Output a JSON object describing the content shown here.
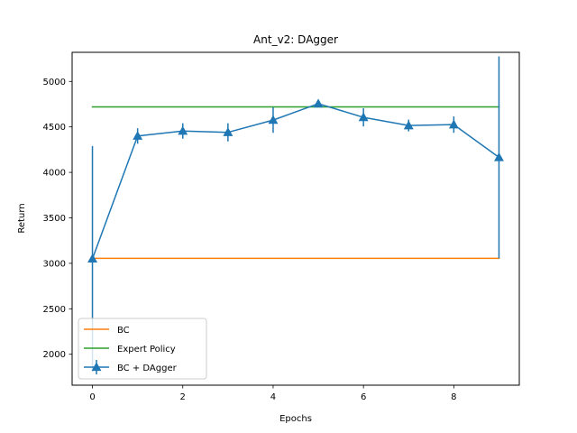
{
  "chart_data": {
    "type": "line",
    "title": "Ant_v2: DAgger",
    "xlabel": "Epochs",
    "ylabel": "Return",
    "xlim": [
      -0.45,
      9.45
    ],
    "ylim": [
      1660,
      5320
    ],
    "x_ticks": [
      0,
      2,
      4,
      6,
      8
    ],
    "y_ticks": [
      2000,
      2500,
      3000,
      3500,
      4000,
      4500,
      5000
    ],
    "grid": false,
    "legend_position": "lower-left",
    "x": [
      0,
      1,
      2,
      3,
      4,
      5,
      6,
      7,
      8,
      9
    ],
    "series": [
      {
        "name": "BC",
        "color": "#ff7f0e",
        "style": "line",
        "values": [
          3055,
          3055,
          3055,
          3055,
          3055,
          3055,
          3055,
          3055,
          3055,
          3055
        ]
      },
      {
        "name": "Expert Policy",
        "color": "#2ca02c",
        "style": "line",
        "values": [
          4720,
          4720,
          4720,
          4720,
          4720,
          4720,
          4720,
          4720,
          4720,
          4720
        ]
      },
      {
        "name": "BC + DAgger",
        "color": "#1f77b4",
        "style": "errorbar",
        "marker": "triangle-up",
        "values": [
          3050,
          4400,
          4455,
          4440,
          4575,
          4755,
          4605,
          4515,
          4525,
          4165
        ],
        "errors": [
          1240,
          85,
          85,
          100,
          140,
          40,
          100,
          65,
          90,
          1110
        ]
      }
    ]
  }
}
